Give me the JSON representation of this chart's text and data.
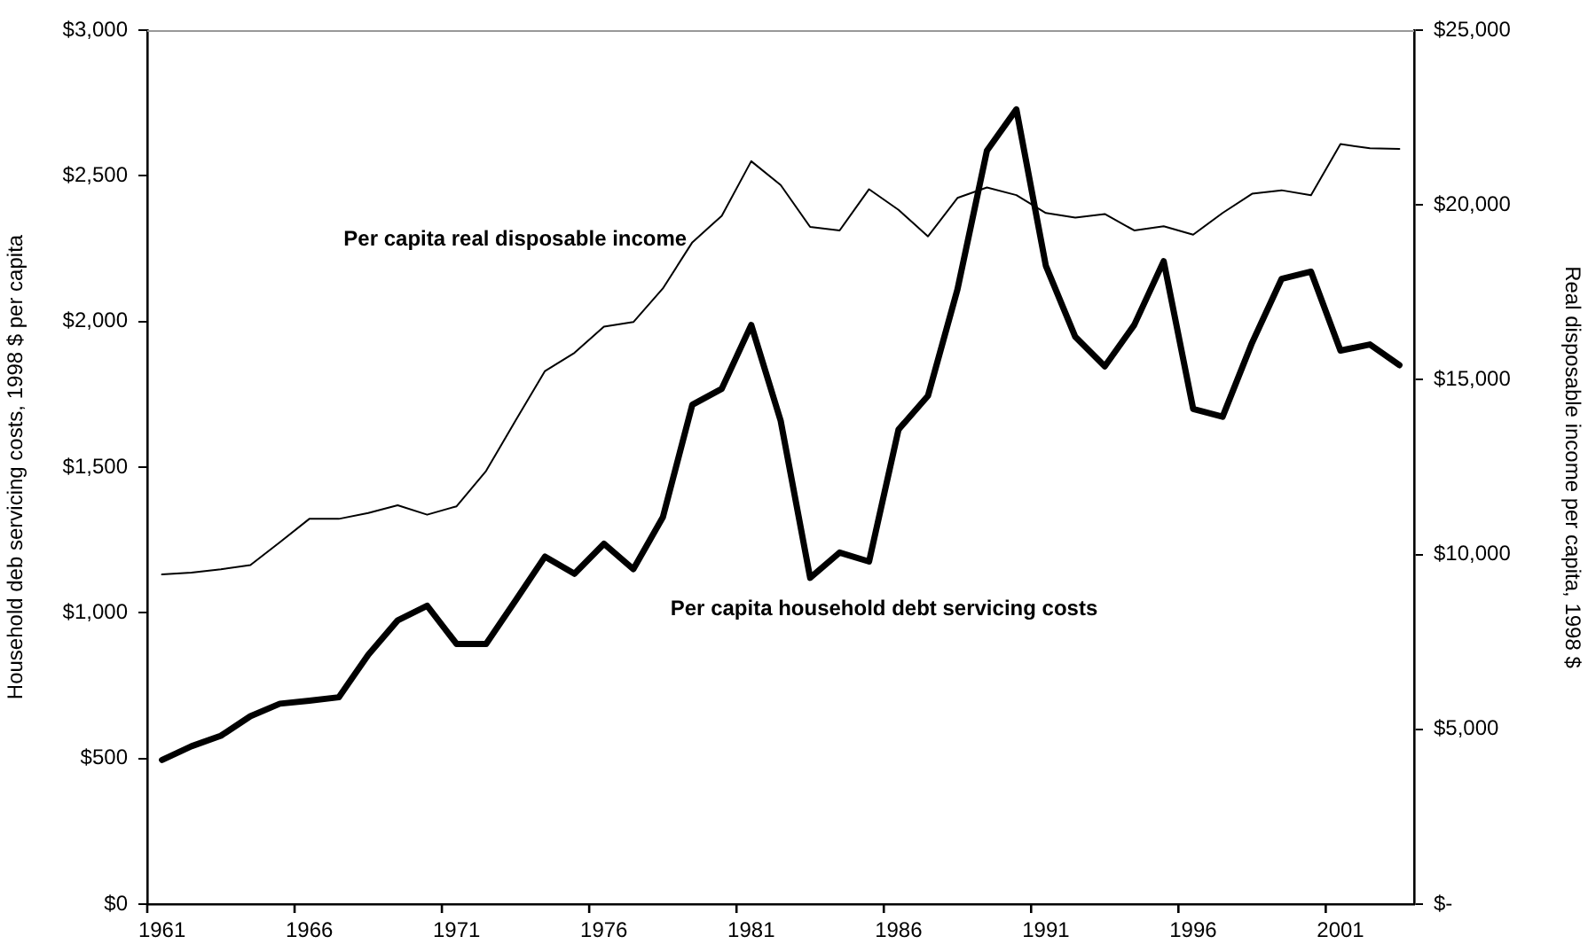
{
  "chart_data": {
    "type": "line",
    "ylabel": "Household deb servicing costs, 1998 $ per capita",
    "y2label": "Real disposable income per capita, 1998 $",
    "categories": [
      "1961",
      null,
      null,
      null,
      null,
      "1966",
      null,
      null,
      null,
      null,
      "1971",
      null,
      null,
      null,
      null,
      "1976",
      null,
      null,
      null,
      null,
      "1981",
      null,
      null,
      null,
      null,
      "1986",
      null,
      null,
      null,
      null,
      "1991",
      null,
      null,
      null,
      null,
      "1996",
      null,
      null,
      null,
      null,
      "2001",
      null,
      null
    ],
    "series": [
      {
        "name": "Per capita real disposable income",
        "color": "#000000",
        "axis": "y2",
        "values": [
          9430,
          9480,
          9580,
          9700,
          10350,
          11020,
          11020,
          11190,
          11410,
          11140,
          11380,
          12390,
          13830,
          15250,
          15770,
          16520,
          16650,
          17610,
          18930,
          19690,
          21250,
          20570,
          19370,
          19270,
          20450,
          19860,
          19100,
          20200,
          20500,
          20280,
          19770,
          19640,
          19740,
          19270,
          19390,
          19150,
          19770,
          20320,
          20420,
          20280,
          21740,
          21620,
          21600
        ]
      },
      {
        "name": "Per capita household debt servicing costs",
        "color": "#000000",
        "axis": "y",
        "values": [
          495,
          542,
          578,
          645,
          688,
          698,
          710,
          856,
          974,
          1024,
          893,
          893,
          1042,
          1193,
          1134,
          1237,
          1150,
          1328,
          1714,
          1769,
          1988,
          1659,
          1120,
          1207,
          1176,
          1629,
          1745,
          2110,
          2586,
          2728,
          2191,
          1947,
          1846,
          1988,
          2207,
          1700,
          1673,
          1927,
          2146,
          2171,
          1900,
          1921,
          1850
        ]
      }
    ],
    "ylim": [
      0,
      3000
    ],
    "yticks": [
      {
        "value": 0,
        "label": "$0"
      },
      {
        "value": 500,
        "label": "$500"
      },
      {
        "value": 1000,
        "label": "$1,000"
      },
      {
        "value": 1500,
        "label": "$1,500"
      },
      {
        "value": 2000,
        "label": "$2,000"
      },
      {
        "value": 2500,
        "label": "$2,500"
      },
      {
        "value": 3000,
        "label": "$3,000"
      }
    ],
    "y2lim": [
      0,
      25000
    ],
    "y2ticks": [
      {
        "value": 0,
        "label": "$-"
      },
      {
        "value": 5000,
        "label": "$5,000"
      },
      {
        "value": 10000,
        "label": "$10,000"
      },
      {
        "value": 15000,
        "label": "$15,000"
      },
      {
        "value": 20000,
        "label": "$20,000"
      },
      {
        "value": 25000,
        "label": "$25,000"
      }
    ],
    "grid": false,
    "legend": false,
    "marker": "none",
    "line_style": "solid"
  }
}
